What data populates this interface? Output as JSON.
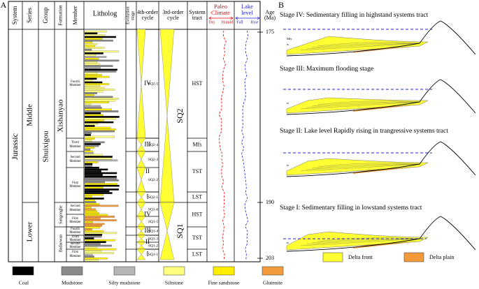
{
  "panels": {
    "a": "A",
    "b": "B"
  },
  "headers": {
    "system": "System",
    "series": "Series",
    "group": "Group",
    "formation": "Formation",
    "member": "Member",
    "litholog": "Litholog",
    "evolution": "Evolution stage",
    "fourth": "4th-order cycle",
    "third": "3rd-order cycle",
    "tract": "System tract",
    "climate": "Paleo Climate",
    "dry": "Dry",
    "humid": "Humid",
    "lake": "Lake level",
    "fall": "Fall",
    "rise": "Rise",
    "age": "Age (Ma)"
  },
  "system": "Jurassic",
  "series": [
    "Middle",
    "Lower"
  ],
  "group": "Shuixigou",
  "formations": [
    "Xishanyao",
    "Sangonghe",
    "Badaowan"
  ],
  "members": [
    "Fourth Member",
    "Third Member",
    "Second Member",
    "First Member",
    "Second Member",
    "First Member",
    "Fourth Member",
    "Third Member",
    "Second Member",
    "First Member"
  ],
  "evolution_stages": [
    "IV",
    "III",
    "II",
    "I",
    "IV",
    "III",
    "II",
    "I"
  ],
  "fourth_order": [
    "SQ2-5",
    "SQ2-4",
    "SQ2-3",
    "SQ2-2",
    "SQ2-1",
    "SQ1-6",
    "SQ1-5",
    "SQ1-4",
    "SQ1-3",
    "SQ1-2",
    "SQ1-1"
  ],
  "third_order": [
    "SQ2",
    "SQ1"
  ],
  "system_tracts": [
    "HST",
    "Mfs",
    "TST",
    "LST",
    "HST",
    "TST",
    "LST"
  ],
  "ages": [
    175,
    190,
    203
  ],
  "legend": [
    "Coal",
    "Mudstone",
    "Silty mudstone",
    "Siltstone",
    "Fine sandstone",
    "Glutenite"
  ],
  "stages": [
    "Stage IV: Sedimentary filling in highstand systems tract",
    "Stage III: Maximum flooding stage",
    "Stage II: Lake level Rapidly rising  in trangressive systems tract",
    "Stage I: Sedimentary filling in lowstand systems  tract"
  ],
  "surface_labels": {
    "mfs": "Mfs",
    "ts": "ts"
  },
  "b_legend": [
    "Delta front",
    "Delta plain"
  ]
}
